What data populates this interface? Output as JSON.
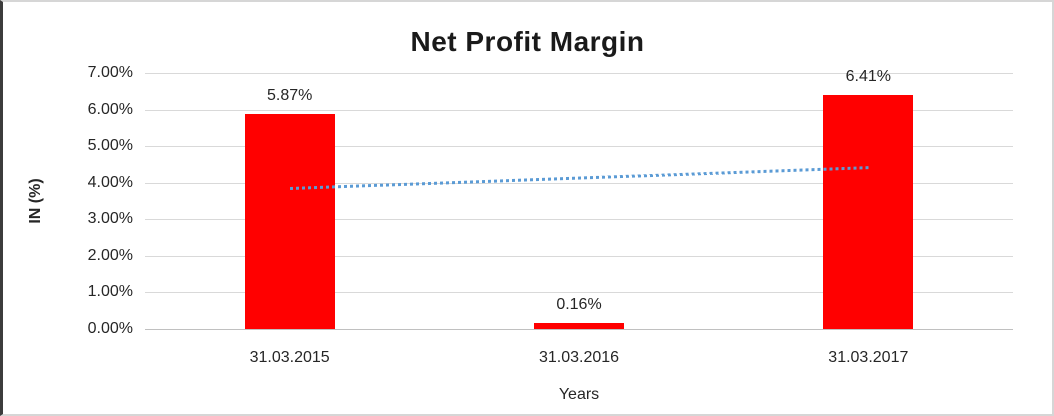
{
  "chart_data": {
    "type": "bar",
    "title": "Net Profit Margin",
    "xlabel": "Years",
    "ylabel": "IN (%)",
    "categories": [
      "31.03.2015",
      "31.03.2016",
      "31.03.2017"
    ],
    "values": [
      5.87,
      0.16,
      6.41
    ],
    "data_labels": [
      "5.87%",
      "0.16%",
      "6.41%"
    ],
    "ylim": [
      0,
      7
    ],
    "ytick_step": 1,
    "ytick_labels": [
      "0.00%",
      "1.00%",
      "2.00%",
      "3.00%",
      "4.00%",
      "5.00%",
      "6.00%",
      "7.00%"
    ],
    "grid": true,
    "legend": "none",
    "bar_color": "#ff0000",
    "gridline_color": "#d9d9d9",
    "text_color": "#262626",
    "trendline": {
      "style": "dotted",
      "color": "#5b9bd5",
      "start_value": 3.85,
      "end_value": 4.42
    }
  }
}
